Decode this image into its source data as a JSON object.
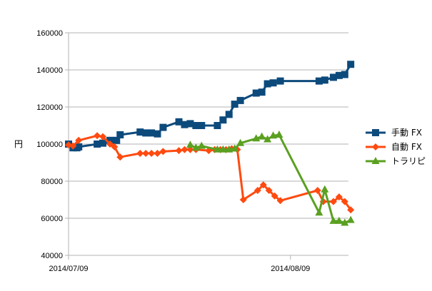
{
  "chart_data": {
    "type": "line",
    "title": "",
    "xlabel": "",
    "ylabel": "円",
    "ylim": [
      40000,
      160000
    ],
    "yticks": [
      "40000",
      "60000",
      "80000",
      "100000",
      "120000",
      "140000",
      "160000"
    ],
    "xlim": [
      "2014/07/09",
      "2014/08/16"
    ],
    "xticks": [
      "2014/07/09",
      "2014/08/09"
    ],
    "grid": "horizontal",
    "legend": "right",
    "series": [
      {
        "name": "手動 FX",
        "color": "#0d4a7c",
        "marker": "square",
        "x": [
          "2014-07-09T00:00",
          "2014-07-09T15:00",
          "2014-07-10T04:00",
          "2014-07-10T10:00",
          "2014-07-13T00:00",
          "2014-07-13T19:00",
          "2014-07-14T19:00",
          "2014-07-15T17:00",
          "2014-07-16T05:00",
          "2014-07-19T00:00",
          "2014-07-19T19:00",
          "2014-07-20T14:00",
          "2014-07-21T10:00",
          "2014-07-22T05:00",
          "2014-07-24T10:00",
          "2014-07-25T05:00",
          "2014-07-26T00:00",
          "2014-07-26T19:00",
          "2014-07-27T14:00",
          "2014-07-29T19:00",
          "2014-07-30T14:00",
          "2014-07-31T10:00",
          "2014-08-01T05:00",
          "2014-08-02T00:00",
          "2014-08-04T05:00",
          "2014-08-05T00:00",
          "2014-08-05T19:00",
          "2014-08-06T14:00",
          "2014-08-07T14:00",
          "2014-08-13T00:00",
          "2014-08-13T19:00",
          "2014-08-15T00:00",
          "2014-08-15T19:00",
          "2014-08-16T14:00",
          "2014-08-17T10:00"
        ],
        "values": [
          100000,
          98000,
          98000,
          98500,
          100000,
          100500,
          102000,
          102000,
          105000,
          106500,
          106000,
          106000,
          105500,
          109000,
          112000,
          110500,
          111000,
          110000,
          110000,
          110000,
          113000,
          116000,
          121500,
          123500,
          127500,
          128000,
          132500,
          133000,
          134000,
          134000,
          134500,
          136000,
          137000,
          137500,
          143000
        ]
      },
      {
        "name": "自動 FX",
        "color": "#ff4a10",
        "marker": "diamond",
        "x": [
          "2014-07-09T00:00",
          "2014-07-09T15:00",
          "2014-07-10T10:00",
          "2014-07-13T00:00",
          "2014-07-13T19:00",
          "2014-07-14T19:00",
          "2014-07-15T10:00",
          "2014-07-16T05:00",
          "2014-07-19T00:00",
          "2014-07-19T19:00",
          "2014-07-20T14:00",
          "2014-07-21T10:00",
          "2014-07-22T05:00",
          "2014-07-24T10:00",
          "2014-07-25T05:00",
          "2014-07-26T00:00",
          "2014-07-26T19:00",
          "2014-07-28T14:00",
          "2014-07-29T10:00",
          "2014-07-30T05:00",
          "2014-07-31T00:00",
          "2014-07-31T19:00",
          "2014-08-01T14:00",
          "2014-08-02T10:00",
          "2014-08-04T10:00",
          "2014-08-05T05:00",
          "2014-08-06T00:00",
          "2014-08-06T19:00",
          "2014-08-07T14:00",
          "2014-08-12T19:00",
          "2014-08-13T14:00",
          "2014-08-15T00:00",
          "2014-08-15T19:00",
          "2014-08-16T14:00",
          "2014-08-17T10:00"
        ],
        "values": [
          99500,
          99000,
          102000,
          104500,
          104000,
          100000,
          98500,
          93000,
          95000,
          95000,
          95000,
          95000,
          96000,
          96500,
          97000,
          97000,
          97000,
          96500,
          97000,
          97000,
          97000,
          97500,
          97000,
          70000,
          75000,
          78000,
          75000,
          72000,
          69500,
          75000,
          69000,
          69000,
          71500,
          69000,
          64500
        ]
      },
      {
        "name": "トラリピ",
        "color": "#5aa021",
        "marker": "triangle",
        "x": [
          "2014-07-26T00:00",
          "2014-07-26T19:00",
          "2014-07-27T14:00",
          "2014-07-29T19:00",
          "2014-07-30T14:00",
          "2014-07-31T10:00",
          "2014-08-01T05:00",
          "2014-08-02T00:00",
          "2014-08-04T05:00",
          "2014-08-05T00:00",
          "2014-08-05T19:00",
          "2014-08-06T14:00",
          "2014-08-07T10:00",
          "2014-08-13T00:00",
          "2014-08-13T19:00",
          "2014-08-15T00:00",
          "2014-08-15T19:00",
          "2014-08-16T14:00",
          "2014-08-17T10:00"
        ],
        "values": [
          99500,
          98000,
          99000,
          97000,
          97000,
          97000,
          97500,
          100500,
          103000,
          104000,
          102500,
          104500,
          105000,
          63000,
          75500,
          58500,
          58500,
          57500,
          59000
        ]
      }
    ]
  }
}
